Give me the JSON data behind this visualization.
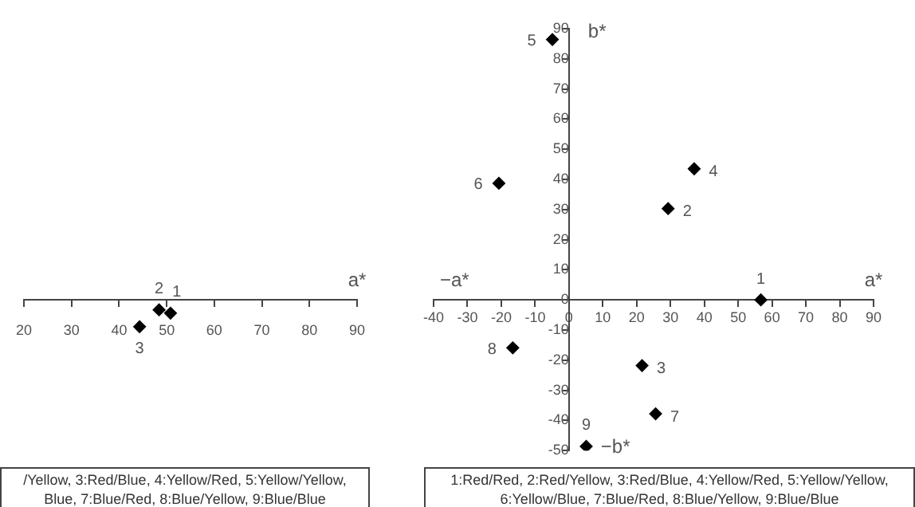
{
  "chart_data": [
    {
      "type": "scatter",
      "xlabel": "a*",
      "marker": "diamond",
      "tick_labels": "x",
      "series": [
        {
          "name": "1",
          "color": "#000000",
          "x": [
            50.8
          ],
          "values": [
            -4.4
          ]
        },
        {
          "name": "2",
          "color": "#000000",
          "x": [
            48.4
          ],
          "values": [
            -3.3
          ]
        },
        {
          "name": "3",
          "color": "#000000",
          "x": [
            44.3
          ],
          "values": [
            -8.9
          ]
        }
      ],
      "xlim": [
        20,
        90
      ],
      "xticks": [
        20,
        30,
        40,
        50,
        60,
        70,
        80,
        90
      ],
      "ylim": [
        -50,
        90
      ],
      "annotations": [
        "/Yellow, 3:Red/Blue, 4:Yellow/Red, 5:Yellow/Yellow,",
        "Blue, 7:Blue/Red, 8:Blue/Yellow, 9:Blue/Blue"
      ]
    },
    {
      "type": "scatter",
      "xlabel": "a*",
      "ylabel": "b*",
      "marker": "diamond",
      "series": [
        {
          "name": "1",
          "color": "#000000",
          "x": [
            56.7
          ],
          "values": [
            0
          ]
        },
        {
          "name": "2",
          "color": "#000000",
          "x": [
            29.3
          ],
          "values": [
            30.3
          ]
        },
        {
          "name": "3",
          "color": "#000000",
          "x": [
            21.6
          ],
          "values": [
            -21.8
          ]
        },
        {
          "name": "4",
          "color": "#000000",
          "x": [
            37.0
          ],
          "values": [
            43.5
          ]
        },
        {
          "name": "5",
          "color": "#000000",
          "x": [
            -4.9
          ],
          "values": [
            86.4
          ]
        },
        {
          "name": "6",
          "color": "#000000",
          "x": [
            -20.7
          ],
          "values": [
            38.7
          ]
        },
        {
          "name": "7",
          "color": "#000000",
          "x": [
            25.6
          ],
          "values": [
            -37.8
          ]
        },
        {
          "name": "8",
          "color": "#000000",
          "x": [
            -16.6
          ],
          "values": [
            -15.9
          ]
        },
        {
          "name": "9",
          "color": "#000000",
          "x": [
            5.1
          ],
          "values": [
            -48.6
          ]
        }
      ],
      "xlim": [
        -40,
        90
      ],
      "xticks": [
        -40,
        -30,
        -20,
        -10,
        0,
        10,
        20,
        30,
        40,
        50,
        60,
        70,
        80,
        90
      ],
      "ylim": [
        -50,
        90
      ],
      "yticks": [
        -50,
        -40,
        -30,
        -20,
        -10,
        0,
        10,
        20,
        30,
        40,
        50,
        60,
        70,
        80,
        90
      ],
      "annotations": [
        "−a*",
        "−b*",
        "1:Red/Red, 2:Red/Yellow, 3:Red/Blue, 4:Yellow/Red, 5:Yellow/Yellow,",
        "6:Yellow/Blue, 7:Blue/Red, 8:Blue/Yellow, 9:Blue/Blue"
      ]
    }
  ]
}
